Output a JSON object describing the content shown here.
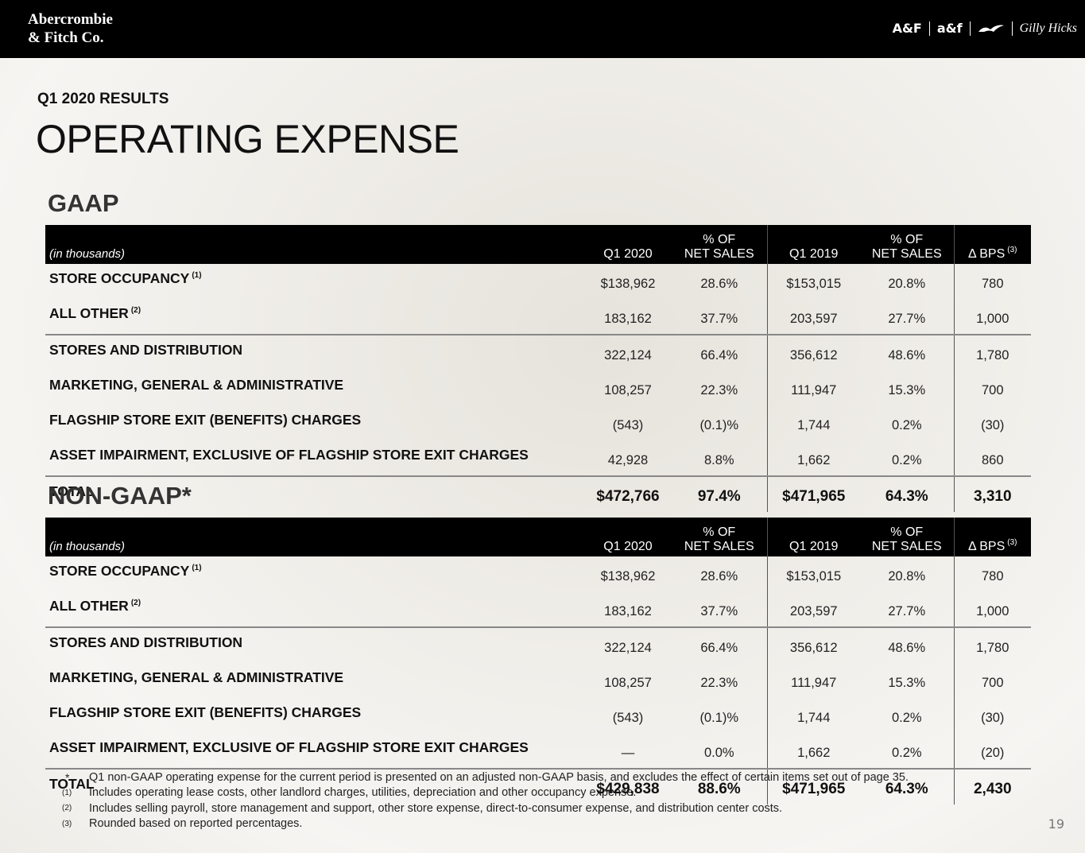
{
  "header": {
    "logo_line1": "Abercrombie",
    "logo_line2": "& Fitch Co.",
    "brands": [
      "A&F",
      "a&f",
      "Gilly Hicks"
    ]
  },
  "subtitle": "Q1 2020 RESULTS",
  "title": "OPERATING EXPENSE",
  "tables": [
    {
      "heading": "GAAP",
      "columns": [
        {
          "lines": [
            "(in thousands)"
          ]
        },
        {
          "lines": [
            "Q1 2020"
          ]
        },
        {
          "lines": [
            "% OF",
            "NET SALES"
          ]
        },
        {
          "lines": [
            "Q1 2019"
          ]
        },
        {
          "lines": [
            "% OF",
            "NET SALES"
          ]
        },
        {
          "lines": [
            "Δ BPS"
          ],
          "note": "(3)"
        }
      ],
      "rows": [
        {
          "label": "STORE OCCUPANCY",
          "note": "(1)",
          "cells": [
            "$138,962",
            "28.6%",
            "$153,015",
            "20.8%",
            "780"
          ]
        },
        {
          "label": "ALL OTHER",
          "note": "(2)",
          "cells": [
            "183,162",
            "37.7%",
            "203,597",
            "27.7%",
            "1,000"
          ]
        },
        {
          "label": "STORES AND DISTRIBUTION",
          "cells": [
            "322,124",
            "66.4%",
            "356,612",
            "48.6%",
            "1,780"
          ]
        },
        {
          "label": "MARKETING, GENERAL & ADMINISTRATIVE",
          "cells": [
            "108,257",
            "22.3%",
            "111,947",
            "15.3%",
            "700"
          ]
        },
        {
          "label": "FLAGSHIP STORE EXIT (BENEFITS) CHARGES",
          "cells": [
            "(543)",
            "(0.1)%",
            "1,744",
            "0.2%",
            "(30)"
          ]
        },
        {
          "label": "ASSET IMPAIRMENT, EXCLUSIVE OF FLAGSHIP STORE EXIT CHARGES",
          "cells": [
            "42,928",
            "8.8%",
            "1,662",
            "0.2%",
            "860"
          ]
        },
        {
          "label": "TOTAL",
          "cells": [
            "$472,766",
            "97.4%",
            "$471,965",
            "64.3%",
            "3,310"
          ]
        }
      ]
    },
    {
      "heading": "NON-GAAP*",
      "columns": [
        {
          "lines": [
            "(in thousands)"
          ]
        },
        {
          "lines": [
            "Q1 2020"
          ]
        },
        {
          "lines": [
            "% OF",
            "NET SALES"
          ]
        },
        {
          "lines": [
            "Q1 2019"
          ]
        },
        {
          "lines": [
            "% OF",
            "NET SALES"
          ]
        },
        {
          "lines": [
            "Δ BPS"
          ],
          "note": "(3)"
        }
      ],
      "rows": [
        {
          "label": "STORE OCCUPANCY",
          "note": "(1)",
          "cells": [
            "$138,962",
            "28.6%",
            "$153,015",
            "20.8%",
            "780"
          ]
        },
        {
          "label": "ALL OTHER",
          "note": "(2)",
          "cells": [
            "183,162",
            "37.7%",
            "203,597",
            "27.7%",
            "1,000"
          ]
        },
        {
          "label": "STORES AND DISTRIBUTION",
          "cells": [
            "322,124",
            "66.4%",
            "356,612",
            "48.6%",
            "1,780"
          ]
        },
        {
          "label": "MARKETING, GENERAL & ADMINISTRATIVE",
          "cells": [
            "108,257",
            "22.3%",
            "111,947",
            "15.3%",
            "700"
          ]
        },
        {
          "label": "FLAGSHIP STORE EXIT (BENEFITS) CHARGES",
          "cells": [
            "(543)",
            "(0.1)%",
            "1,744",
            "0.2%",
            "(30)"
          ]
        },
        {
          "label": "ASSET IMPAIRMENT, EXCLUSIVE OF FLAGSHIP STORE EXIT CHARGES",
          "cells": [
            "—",
            "0.0%",
            "1,662",
            "0.2%",
            "(20)"
          ]
        },
        {
          "label": "TOTAL",
          "cells": [
            "$429,838",
            "88.6%",
            "$471,965",
            "64.3%",
            "2,430"
          ]
        }
      ]
    }
  ],
  "footnotes": [
    {
      "marker": "*",
      "text": "Q1 non-GAAP operating expense for the current period is presented on an adjusted non-GAAP basis, and excludes the effect of certain items set out of page 35."
    },
    {
      "marker": "(1)",
      "text": "Includes operating lease costs, other landlord charges, utilities, depreciation and other occupancy expense."
    },
    {
      "marker": "(2)",
      "text": "Includes selling payroll, store management and support, other store expense, direct-to-consumer expense, and distribution center costs."
    },
    {
      "marker": "(3)",
      "text": "Rounded based on reported percentages."
    }
  ],
  "page_number": "19"
}
